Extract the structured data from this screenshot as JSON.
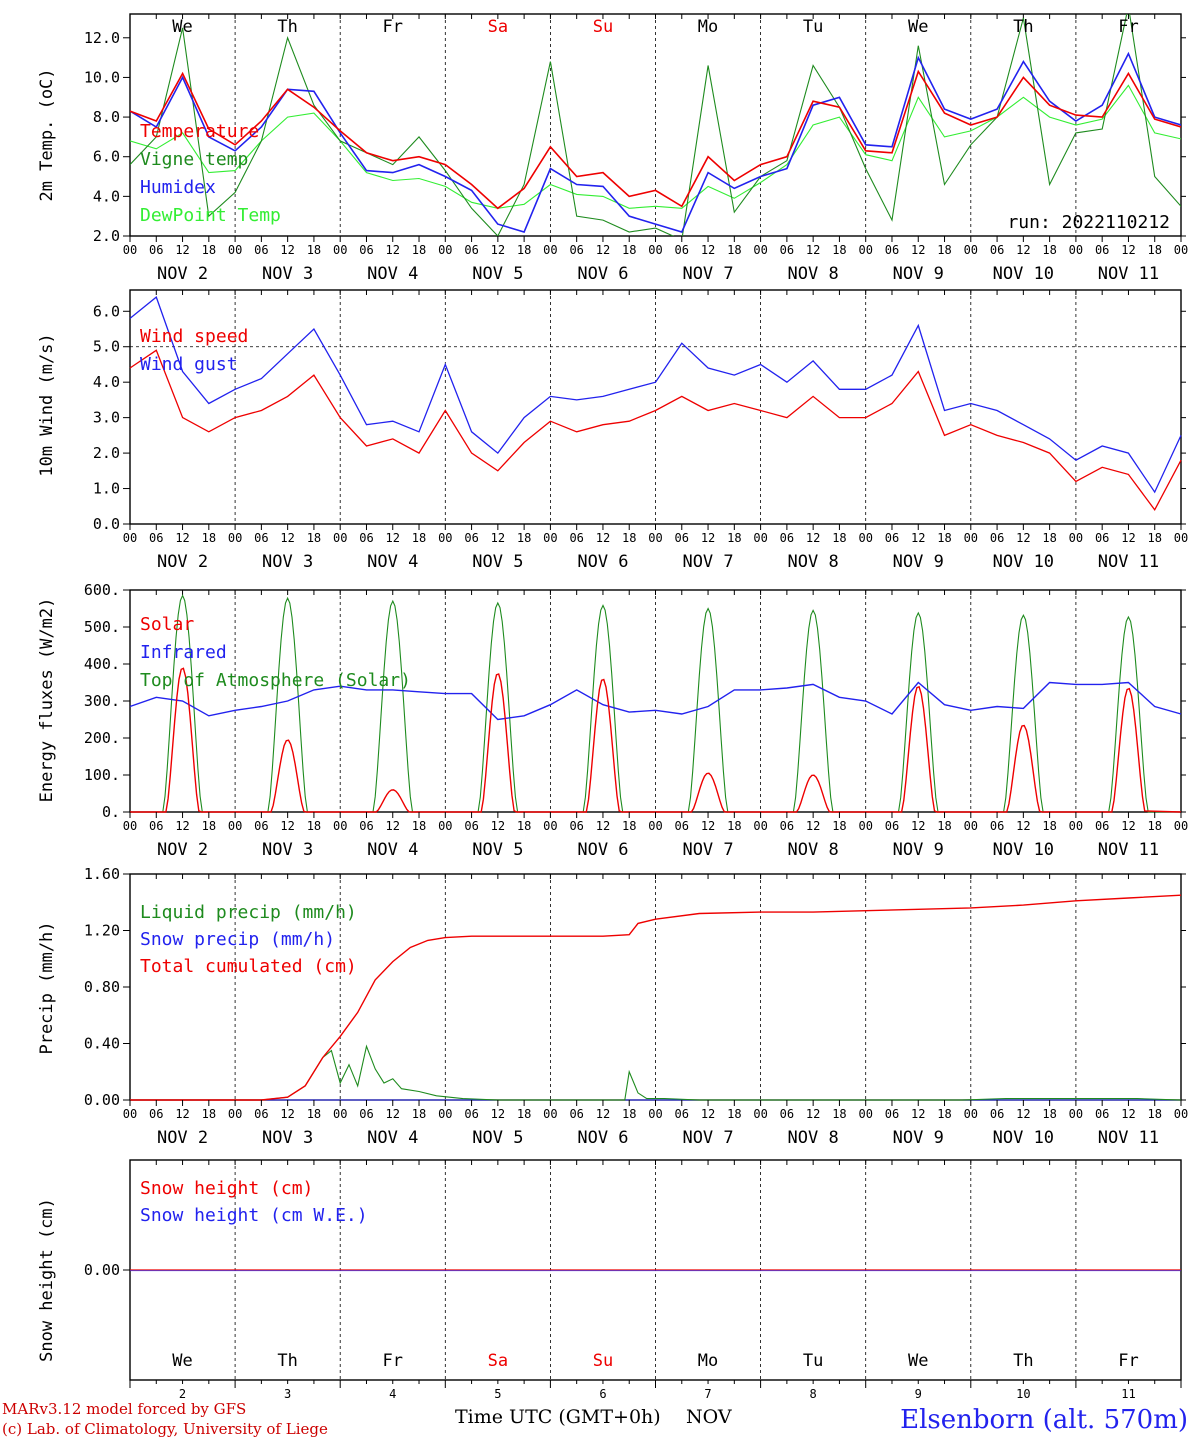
{
  "footer": {
    "model_line": "MARv3.12 model forced by GFS",
    "credit_line": "(c) Lab. of Climatology, University of Liege",
    "xlabel": "Time UTC (GMT+0h)",
    "month": "NOV",
    "station": "Elsenborn (alt. 570m)"
  },
  "x_hour_ticks": [
    "00",
    "06",
    "12",
    "18"
  ],
  "x_date_labels": [
    "NOV  2",
    "NOV  3",
    "NOV  4",
    "NOV  5",
    "NOV  6",
    "NOV  7",
    "NOV  8",
    "NOV  9",
    "NOV 10",
    "NOV 11"
  ],
  "day_names": [
    {
      "label": "We",
      "color": "#000000"
    },
    {
      "label": "Th",
      "color": "#000000"
    },
    {
      "label": "Fr",
      "color": "#000000"
    },
    {
      "label": "Sa",
      "color": "#ee0000"
    },
    {
      "label": "Su",
      "color": "#ee0000"
    },
    {
      "label": "Mo",
      "color": "#000000"
    },
    {
      "label": "Tu",
      "color": "#000000"
    },
    {
      "label": "We",
      "color": "#000000"
    },
    {
      "label": "Th",
      "color": "#000000"
    },
    {
      "label": "Fr",
      "color": "#000000"
    }
  ],
  "bottom_day_numbers": [
    "2",
    "3",
    "4",
    "5",
    "6",
    "7",
    "8",
    "9",
    "10",
    "11"
  ],
  "chart_data": [
    {
      "type": "line",
      "ylabel": "2m Temp. (oC)",
      "ylim": [
        2.0,
        13.2
      ],
      "yticks": [
        2.0,
        4.0,
        6.0,
        8.0,
        10.0,
        12.0
      ],
      "ytick_labels": [
        "2.0",
        "4.0",
        "6.0",
        "8.0",
        "10.0",
        "12.0"
      ],
      "x_unit": "hours since NOV 2 00 UTC",
      "xlim": [
        0,
        240
      ],
      "annotation": "run: 2022110212",
      "series": [
        {
          "name": "Temperature",
          "color": "#ee0000",
          "x": [
            0,
            6,
            12,
            18,
            24,
            30,
            36,
            42,
            48,
            54,
            60,
            66,
            72,
            78,
            84,
            90,
            96,
            102,
            108,
            114,
            120,
            126,
            132,
            138,
            144,
            150,
            156,
            162,
            168,
            174,
            180,
            186,
            192,
            198,
            204,
            210,
            216,
            222,
            228,
            234,
            240
          ],
          "y": [
            8.3,
            7.8,
            10.2,
            7.4,
            6.6,
            7.8,
            9.4,
            8.5,
            7.3,
            6.2,
            5.8,
            6.0,
            5.6,
            4.6,
            3.4,
            4.4,
            6.5,
            5.0,
            5.2,
            4.0,
            4.3,
            3.5,
            6.0,
            4.8,
            5.6,
            6.0,
            8.8,
            8.5,
            6.3,
            6.2,
            10.3,
            8.2,
            7.6,
            8.0,
            10.0,
            8.6,
            8.1,
            8.0,
            10.2,
            7.9,
            7.5
          ]
        },
        {
          "name": "Vigne temp",
          "color": "#1e8b1e",
          "x": [
            0,
            6,
            12,
            18,
            24,
            30,
            36,
            42,
            48,
            54,
            60,
            66,
            72,
            78,
            84,
            90,
            96,
            102,
            108,
            114,
            120,
            126,
            132,
            138,
            144,
            150,
            156,
            162,
            168,
            174,
            180,
            186,
            192,
            198,
            204,
            210,
            216,
            222,
            228,
            234,
            240
          ],
          "y": [
            5.6,
            7.0,
            12.5,
            3.0,
            4.2,
            6.8,
            12.0,
            8.6,
            6.8,
            6.2,
            5.6,
            7.0,
            5.3,
            3.4,
            2.0,
            4.6,
            10.8,
            3.0,
            2.8,
            2.2,
            2.4,
            1.8,
            10.6,
            3.2,
            5.0,
            5.8,
            10.6,
            8.5,
            5.4,
            2.8,
            11.6,
            4.6,
            6.6,
            8.0,
            13.0,
            4.6,
            7.2,
            7.4,
            13.6,
            5.0,
            3.5
          ]
        },
        {
          "name": "Humidex",
          "color": "#2222ee",
          "x": [
            0,
            6,
            12,
            18,
            24,
            30,
            36,
            42,
            48,
            54,
            60,
            66,
            72,
            78,
            84,
            90,
            96,
            102,
            108,
            114,
            120,
            126,
            132,
            138,
            144,
            150,
            156,
            162,
            168,
            174,
            180,
            186,
            192,
            198,
            204,
            210,
            216,
            222,
            228,
            234,
            240
          ],
          "y": [
            8.3,
            7.5,
            10.0,
            7.0,
            6.3,
            7.5,
            9.4,
            9.3,
            7.2,
            5.3,
            5.2,
            5.6,
            5.0,
            4.3,
            2.6,
            2.2,
            5.4,
            4.6,
            4.5,
            3.0,
            2.6,
            2.2,
            5.2,
            4.4,
            5.0,
            5.4,
            8.6,
            9.0,
            6.6,
            6.5,
            11.0,
            8.4,
            7.9,
            8.4,
            10.8,
            8.8,
            7.8,
            8.6,
            11.2,
            8.0,
            7.6
          ]
        },
        {
          "name": "DewPoint Temp",
          "color": "#33ee33",
          "x": [
            0,
            6,
            12,
            18,
            24,
            30,
            36,
            42,
            48,
            54,
            60,
            66,
            72,
            78,
            84,
            90,
            96,
            102,
            108,
            114,
            120,
            126,
            132,
            138,
            144,
            150,
            156,
            162,
            168,
            174,
            180,
            186,
            192,
            198,
            204,
            210,
            216,
            222,
            228,
            234,
            240
          ],
          "y": [
            6.8,
            6.4,
            7.2,
            5.2,
            5.3,
            6.8,
            8.0,
            8.2,
            6.8,
            5.2,
            4.8,
            4.9,
            4.5,
            3.7,
            3.4,
            3.6,
            4.6,
            4.1,
            4.0,
            3.4,
            3.5,
            3.4,
            4.5,
            3.9,
            4.7,
            5.6,
            7.6,
            8.0,
            6.1,
            5.8,
            9.0,
            7.0,
            7.3,
            8.0,
            9.0,
            8.0,
            7.6,
            7.9,
            9.6,
            7.2,
            6.9
          ]
        }
      ],
      "legend_placement": "top-left",
      "grid": "vertical day separators"
    },
    {
      "type": "line",
      "ylabel": "10m Wind (m/s)",
      "ylim": [
        0.0,
        6.6
      ],
      "yticks": [
        0.0,
        1.0,
        2.0,
        3.0,
        4.0,
        5.0,
        6.0
      ],
      "ytick_labels": [
        "0.0",
        "1.0",
        "2.0",
        "3.0",
        "4.0",
        "5.0",
        "6.0"
      ],
      "reference_line": 5.0,
      "x_unit": "hours since NOV 2 00 UTC",
      "xlim": [
        0,
        240
      ],
      "series": [
        {
          "name": "Wind speed",
          "color": "#ee0000",
          "x": [
            0,
            6,
            12,
            18,
            24,
            30,
            36,
            42,
            48,
            54,
            60,
            66,
            72,
            78,
            84,
            90,
            96,
            102,
            108,
            114,
            120,
            126,
            132,
            138,
            144,
            150,
            156,
            162,
            168,
            174,
            180,
            186,
            192,
            198,
            204,
            210,
            216,
            222,
            228,
            234,
            240
          ],
          "y": [
            4.4,
            4.9,
            3.0,
            2.6,
            3.0,
            3.2,
            3.6,
            4.2,
            3.0,
            2.2,
            2.4,
            2.0,
            3.2,
            2.0,
            1.5,
            2.3,
            2.9,
            2.6,
            2.8,
            2.9,
            3.2,
            3.6,
            3.2,
            3.4,
            3.2,
            3.0,
            3.6,
            3.0,
            3.0,
            3.4,
            4.3,
            2.5,
            2.8,
            2.5,
            2.3,
            2.0,
            1.2,
            1.6,
            1.4,
            0.4,
            1.8
          ]
        },
        {
          "name": "Wind gust",
          "color": "#2222ee",
          "x": [
            0,
            6,
            12,
            18,
            24,
            30,
            36,
            42,
            48,
            54,
            60,
            66,
            72,
            78,
            84,
            90,
            96,
            102,
            108,
            114,
            120,
            126,
            132,
            138,
            144,
            150,
            156,
            162,
            168,
            174,
            180,
            186,
            192,
            198,
            204,
            210,
            216,
            222,
            228,
            234,
            240
          ],
          "y": [
            5.8,
            6.4,
            4.3,
            3.4,
            3.8,
            4.1,
            4.8,
            5.5,
            4.2,
            2.8,
            2.9,
            2.6,
            4.5,
            2.6,
            2.0,
            3.0,
            3.6,
            3.5,
            3.6,
            3.8,
            4.0,
            5.1,
            4.4,
            4.2,
            4.5,
            4.0,
            4.6,
            3.8,
            3.8,
            4.2,
            5.6,
            3.2,
            3.4,
            3.2,
            2.8,
            2.4,
            1.8,
            2.2,
            2.0,
            0.9,
            2.5
          ]
        }
      ],
      "legend_placement": "top-left"
    },
    {
      "type": "line",
      "ylabel": "Energy fluxes (W/m2)",
      "ylim": [
        0,
        600
      ],
      "yticks": [
        0,
        100,
        200,
        300,
        400,
        500,
        600
      ],
      "ytick_labels": [
        "0.",
        "100.",
        "200.",
        "300.",
        "400.",
        "500.",
        "600."
      ],
      "x_unit": "hours since NOV 2 00 UTC",
      "xlim": [
        0,
        240
      ],
      "daily_peaks": {
        "Solar": [
          390,
          195,
          60,
          375,
          360,
          105,
          100,
          340,
          235,
          335
        ],
        "Top of Atmosphere (Solar)": [
          585,
          578,
          570,
          565,
          558,
          550,
          545,
          538,
          532,
          527
        ]
      },
      "series": [
        {
          "name": "Solar",
          "color": "#ee0000"
        },
        {
          "name": "Infrared",
          "color": "#2222ee",
          "x": [
            0,
            6,
            12,
            18,
            24,
            30,
            36,
            42,
            48,
            54,
            60,
            66,
            72,
            78,
            84,
            90,
            96,
            102,
            108,
            114,
            120,
            126,
            132,
            138,
            144,
            150,
            156,
            162,
            168,
            174,
            180,
            186,
            192,
            198,
            204,
            210,
            216,
            222,
            228,
            234,
            240
          ],
          "y": [
            285,
            310,
            300,
            260,
            275,
            285,
            300,
            330,
            340,
            330,
            330,
            325,
            320,
            320,
            250,
            260,
            290,
            330,
            290,
            270,
            275,
            265,
            285,
            330,
            330,
            335,
            345,
            310,
            300,
            265,
            350,
            290,
            275,
            285,
            280,
            350,
            345,
            345,
            350,
            285,
            265
          ]
        },
        {
          "name": "Top of Atmosphere (Solar)",
          "color": "#1e8b1e"
        }
      ],
      "legend_placement": "top-left"
    },
    {
      "type": "line",
      "ylabel": "Precip (mm/h)",
      "ylim": [
        0.0,
        1.6
      ],
      "yticks": [
        0.0,
        0.4,
        0.8,
        1.2,
        1.6
      ],
      "ytick_labels": [
        "0.00",
        "0.40",
        "0.80",
        "1.20",
        "1.60"
      ],
      "x_unit": "hours since NOV 2 00 UTC",
      "xlim": [
        0,
        240
      ],
      "series": [
        {
          "name": "Liquid precip (mm/h)",
          "color": "#1e8b1e",
          "x": [
            0,
            30,
            36,
            40,
            42,
            44,
            46,
            48,
            50,
            52,
            54,
            56,
            58,
            60,
            62,
            66,
            70,
            76,
            84,
            100,
            110,
            113,
            114,
            116,
            118,
            122,
            130,
            160,
            180,
            190,
            200,
            210,
            220,
            230,
            240
          ],
          "y": [
            0,
            0,
            0.02,
            0.1,
            0.2,
            0.3,
            0.35,
            0.12,
            0.25,
            0.1,
            0.38,
            0.22,
            0.12,
            0.15,
            0.08,
            0.06,
            0.03,
            0.01,
            0,
            0,
            0,
            0,
            0.2,
            0.05,
            0.01,
            0.01,
            0,
            0,
            0,
            0,
            0.01,
            0.01,
            0.01,
            0.01,
            0
          ]
        },
        {
          "name": "Snow precip (mm/h)",
          "color": "#2222ee",
          "x": [
            0,
            240
          ],
          "y": [
            0,
            0
          ]
        },
        {
          "name": "Total cumulated (cm)",
          "color": "#ee0000",
          "x": [
            0,
            30,
            36,
            40,
            44,
            48,
            52,
            56,
            60,
            64,
            68,
            72,
            78,
            84,
            96,
            108,
            114,
            116,
            120,
            130,
            144,
            156,
            168,
            180,
            192,
            204,
            216,
            228,
            240
          ],
          "y": [
            0,
            0,
            0.02,
            0.1,
            0.3,
            0.45,
            0.62,
            0.85,
            0.98,
            1.08,
            1.13,
            1.15,
            1.16,
            1.16,
            1.16,
            1.16,
            1.17,
            1.25,
            1.28,
            1.32,
            1.33,
            1.33,
            1.34,
            1.35,
            1.36,
            1.38,
            1.41,
            1.43,
            1.45
          ]
        }
      ],
      "legend_placement": "top-left"
    },
    {
      "type": "line",
      "ylabel": "Snow height (cm)",
      "ytick_labels": [
        "0.00"
      ],
      "x_unit": "hours since NOV 2 00 UTC",
      "xlim": [
        0,
        240
      ],
      "series": [
        {
          "name": "Snow height (cm)",
          "color": "#ee0000",
          "x": [
            0,
            240
          ],
          "y": [
            0,
            0
          ]
        },
        {
          "name": "Snow height (cm W.E.)",
          "color": "#2222ee",
          "x": [
            0,
            240
          ],
          "y": [
            0,
            0
          ]
        }
      ],
      "legend_placement": "top-left"
    }
  ]
}
